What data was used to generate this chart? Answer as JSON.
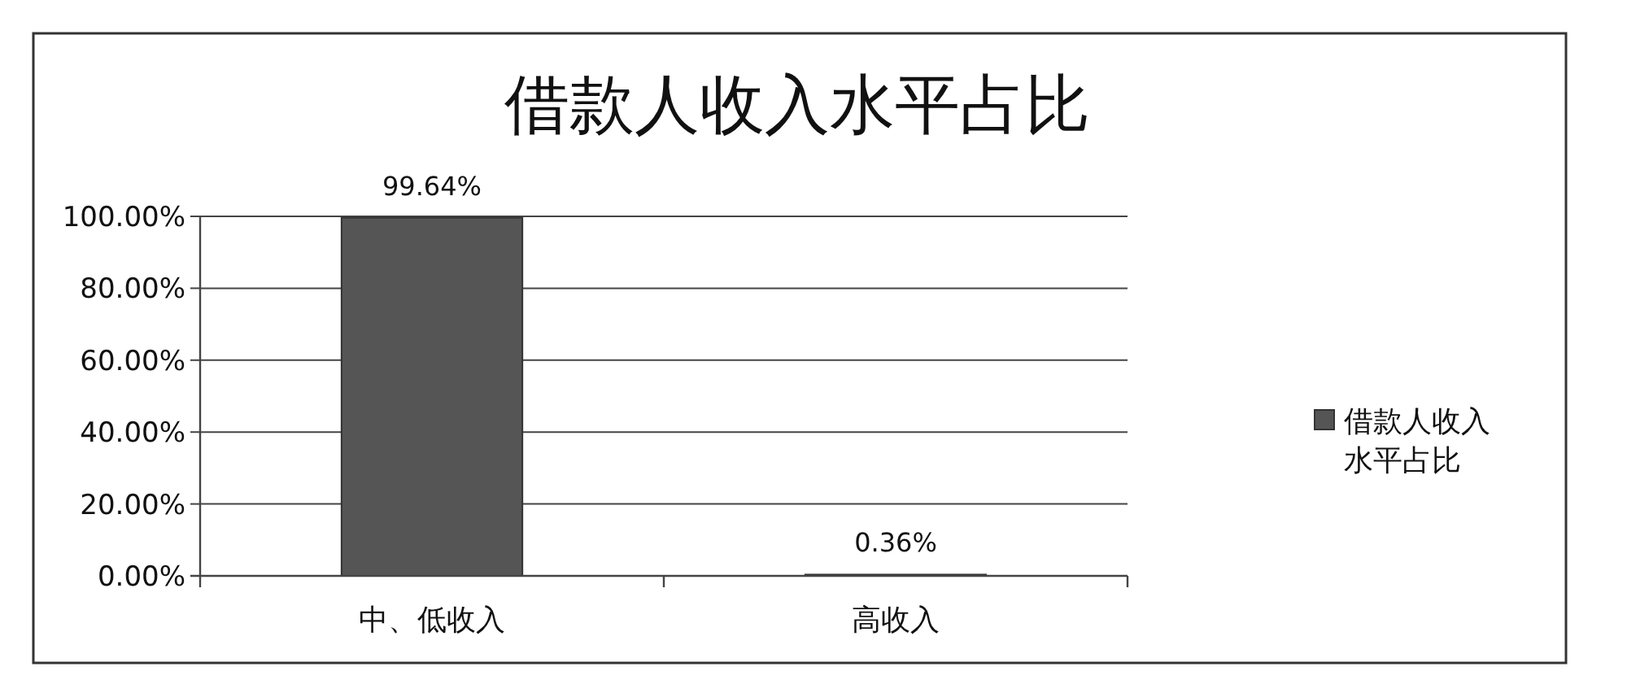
{
  "chart_data": {
    "type": "bar",
    "title": "借款人收入水平占比",
    "categories": [
      "中、低收入",
      "高收入"
    ],
    "series": [
      {
        "name": "借款人收入水平占比",
        "color": "#555555",
        "values": [
          99.64,
          0.36
        ],
        "value_labels": [
          "99.64%",
          "0.36%"
        ]
      }
    ],
    "ylim": [
      0,
      100
    ],
    "yticks": [
      {
        "value": 0,
        "label": "0.00%"
      },
      {
        "value": 20,
        "label": "20.00%"
      },
      {
        "value": 40,
        "label": "40.00%"
      },
      {
        "value": 60,
        "label": "60.00%"
      },
      {
        "value": 80,
        "label": "80.00%"
      },
      {
        "value": 100,
        "label": "100.00%"
      }
    ],
    "grid": "y",
    "legend": "right"
  }
}
